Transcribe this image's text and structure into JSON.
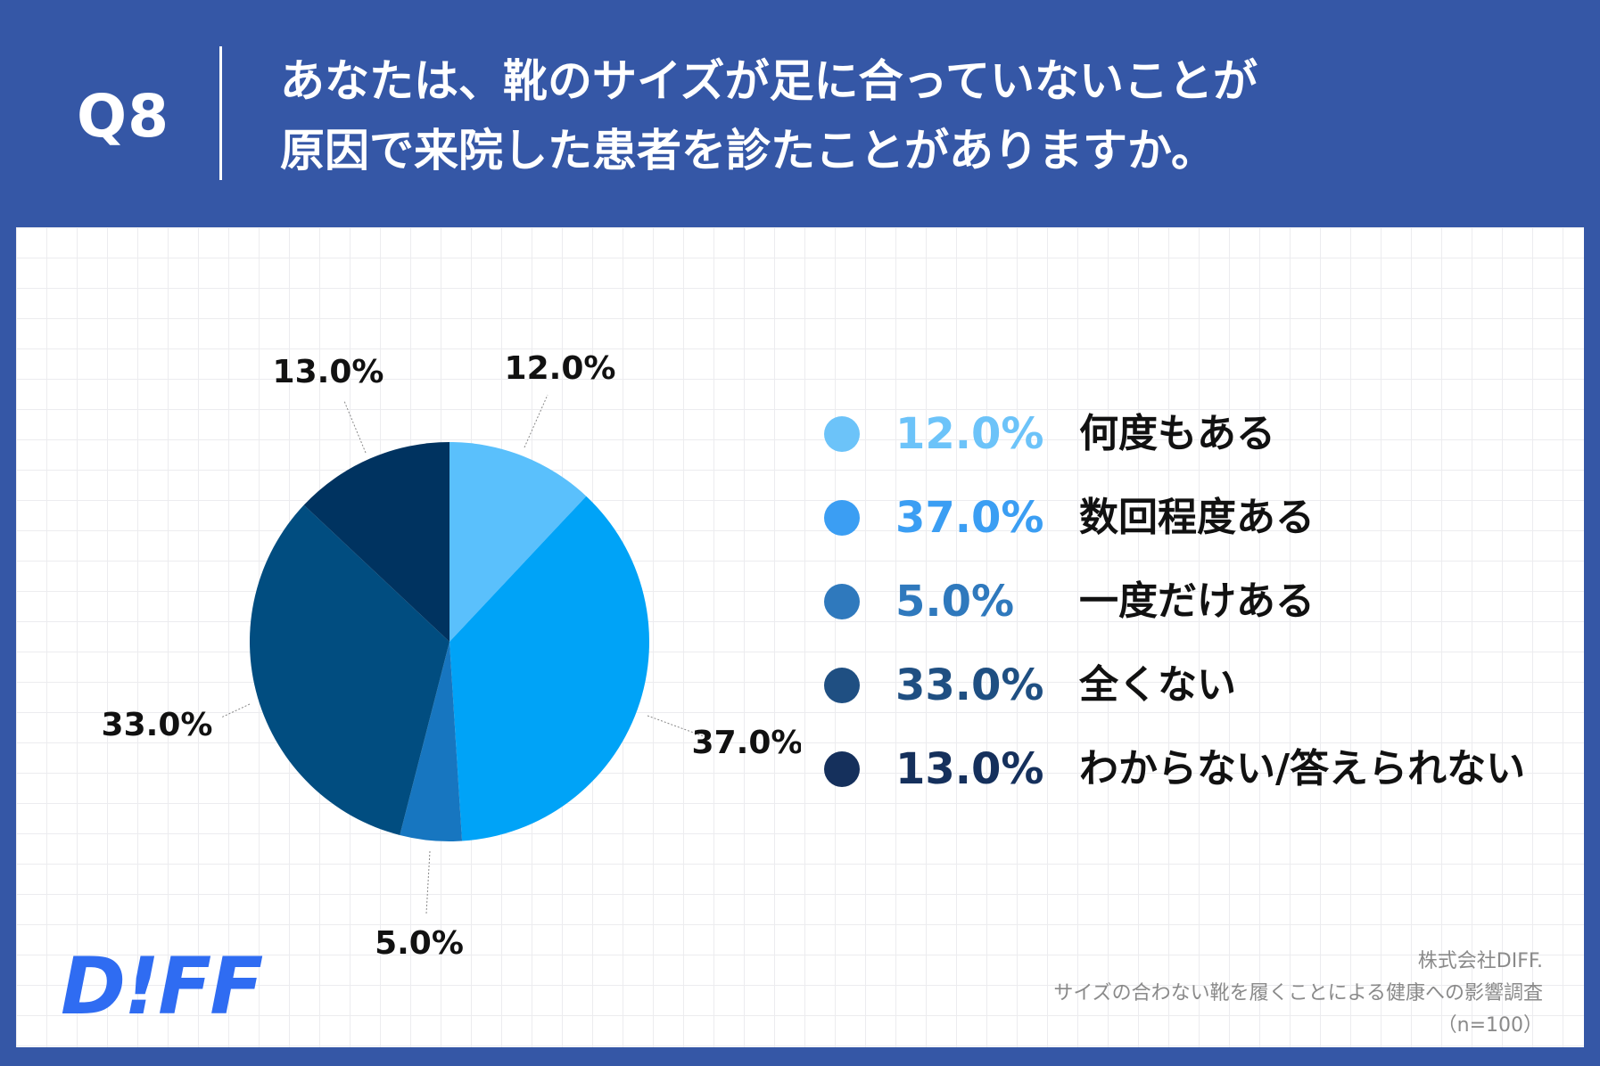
{
  "header": {
    "qnum": "Q8",
    "title_line1": "あなたは、靴のサイズが足に合っていないことが",
    "title_line2": "原因で来院した患者を診たことがありますか。"
  },
  "chart_data": {
    "type": "pie",
    "unit": "%",
    "slices": [
      {
        "label": "何度もある",
        "value": 12.0,
        "display": "12.0%",
        "color": "#5ac0fc"
      },
      {
        "label": "数回程度ある",
        "value": 37.0,
        "display": "37.0%",
        "color": "#00a3f7"
      },
      {
        "label": "一度だけある",
        "value": 5.0,
        "display": "5.0%",
        "color": "#1776c0"
      },
      {
        "label": "全くない",
        "value": 33.0,
        "display": "33.0%",
        "color": "#014d80"
      },
      {
        "label": "わからない/答えられない",
        "value": 13.0,
        "display": "13.0%",
        "color": "#003360"
      }
    ],
    "legend_placement": "right",
    "legend_text_colors": [
      "#6cc3f9",
      "#3b9ef3",
      "#2f79bd",
      "#1f4f82",
      "#15305c"
    ]
  },
  "logo": "D!FF",
  "source": {
    "line1": "株式会社DIFF.",
    "line2": "サイズの合わない靴を履くことによる健康への影響調査",
    "line3": "（n=100）"
  }
}
